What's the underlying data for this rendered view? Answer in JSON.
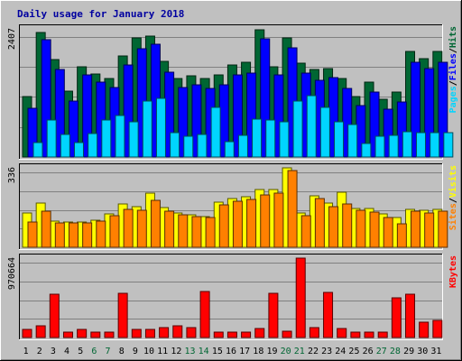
{
  "colors": {
    "background": "#c0c0c0",
    "title": "#0000a0",
    "hits": "#006633",
    "files": "#0000ff",
    "pages": "#00d5ff",
    "visits": "#ffff00",
    "sites": "#ff8000",
    "kbytes": "#ff0000",
    "weekend": "#006633",
    "weekday": "#000000"
  },
  "chart_data": {
    "type": "bar",
    "title": "Daily usage for January 2018",
    "categories": [
      "1",
      "2",
      "3",
      "4",
      "5",
      "6",
      "7",
      "8",
      "9",
      "10",
      "11",
      "12",
      "13",
      "14",
      "15",
      "16",
      "17",
      "18",
      "19",
      "20",
      "21",
      "22",
      "23",
      "24",
      "25",
      "26",
      "27",
      "28",
      "29",
      "30",
      "31"
    ],
    "weekend_days": [
      "6",
      "7",
      "13",
      "14",
      "20",
      "21",
      "27",
      "28"
    ],
    "panels": [
      {
        "name": "hits-files-pages",
        "ymax_label": "2407",
        "ymax": 2407,
        "right_label": [
          "Pages",
          "/",
          "Files",
          "/",
          "Hits"
        ],
        "right_label_colors": [
          "pages",
          "weekday",
          "files",
          "weekday",
          "hits"
        ],
        "series": [
          {
            "name": "Hits",
            "color": "hits",
            "values": [
              1120,
              2320,
              1820,
              1230,
              1690,
              1550,
              1460,
              1880,
              2230,
              2250,
              1780,
              1470,
              1510,
              1470,
              1530,
              1720,
              1770,
              2380,
              1690,
              2230,
              1750,
              1630,
              1650,
              1460,
              1130,
              1400,
              1070,
              1220,
              1970,
              1840,
              1970
            ]
          },
          {
            "name": "Files",
            "color": "files",
            "values": [
              910,
              2180,
              1630,
              1050,
              1530,
              1390,
              1300,
              1710,
              2020,
              2110,
              1590,
              1300,
              1350,
              1280,
              1340,
              1540,
              1570,
              2210,
              1530,
              2030,
              1560,
              1430,
              1480,
              1280,
              960,
              1210,
              900,
              1030,
              1770,
              1650,
              1770
            ]
          },
          {
            "name": "Pages",
            "color": "pages",
            "values": [
              270,
              690,
              420,
              270,
              440,
              690,
              770,
              660,
              1040,
              1100,
              450,
              380,
              420,
              920,
              290,
              410,
              710,
              690,
              650,
              1050,
              1140,
              930,
              660,
              610,
              250,
              390,
              410,
              470,
              450,
              460,
              460
            ]
          }
        ]
      },
      {
        "name": "visits-sites",
        "ymax_label": "336",
        "ymax": 336,
        "right_label": [
          "Sites",
          "/",
          "Visits"
        ],
        "right_label_colors": [
          "sites",
          "weekday",
          "visits"
        ],
        "series": [
          {
            "name": "Visits",
            "color": "visits",
            "values": [
              145,
              185,
              110,
              105,
              107,
              115,
              140,
              180,
              170,
              225,
              167,
              142,
              136,
              130,
              190,
              205,
              210,
              240,
              243,
              333,
              143,
              217,
              185,
              230,
              164,
              162,
              140,
              124,
              160,
              155,
              157
            ]
          },
          {
            "name": "Sites",
            "color": "sites",
            "values": [
              106,
              150,
              103,
              102,
              103,
              110,
              131,
              157,
              155,
              195,
              150,
              136,
              129,
              125,
              178,
              192,
              201,
              220,
              228,
              322,
              132,
              205,
              171,
              181,
              155,
              149,
              124,
              100,
              151,
              145,
              150
            ]
          }
        ]
      },
      {
        "name": "kbytes",
        "ymax_label": "970664",
        "ymax": 970664,
        "right_label": [
          "KBytes"
        ],
        "right_label_colors": [
          "kbytes"
        ],
        "series": [
          {
            "name": "KBytes",
            "color": "kbytes",
            "values": [
              100000,
              137000,
              526000,
              64000,
              97000,
              64000,
              64000,
              529000,
              95000,
              100000,
              120000,
              140000,
              118000,
              556000,
              65000,
              60000,
              65000,
              106000,
              536000,
              80000,
              960000,
              124000,
              548000,
              110000,
              70000,
              60000,
              60000,
              476000,
              523000,
              190000,
              210000
            ]
          }
        ]
      }
    ]
  }
}
